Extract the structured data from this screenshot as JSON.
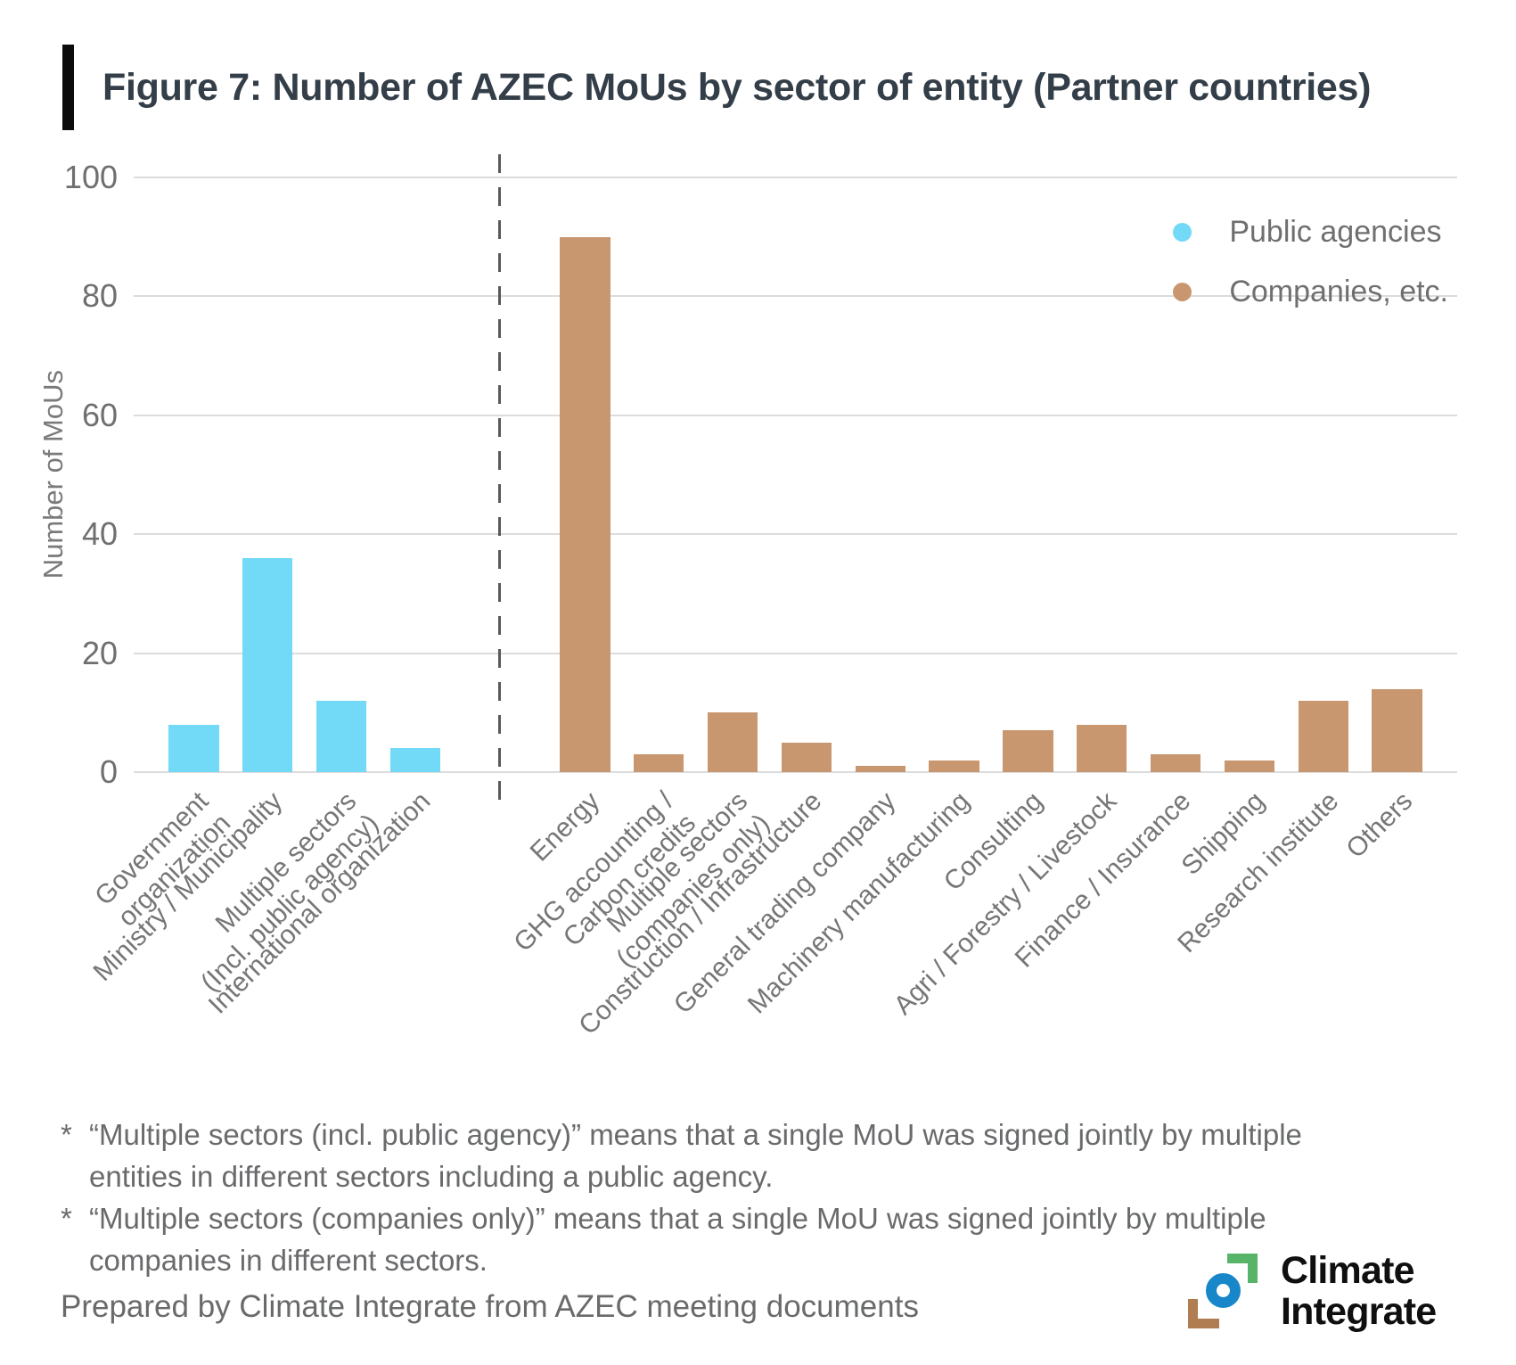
{
  "header": {
    "title": "Figure 7: Number of AZEC MoUs by sector of entity (Partner countries)"
  },
  "chart_data": {
    "type": "bar",
    "title": "Figure 7: Number of AZEC MoUs by sector of entity (Partner countries)",
    "xlabel": "",
    "ylabel": "Number of MoUs",
    "ylim": [
      0,
      100
    ],
    "yticks": [
      0,
      20,
      40,
      60,
      80,
      100
    ],
    "grid": true,
    "legend_position": "top-right",
    "separator": {
      "style": "dashed-vertical-line",
      "color": "#58595b",
      "position": "between-groups"
    },
    "groups": [
      {
        "name": "Public agencies",
        "color": "#72d9f6",
        "categories": [
          "Government\norganization",
          "Ministry / Municipality",
          "Multiple sectors\n(Incl. public agency)",
          "International organization"
        ],
        "values": [
          8,
          36,
          12,
          4
        ]
      },
      {
        "name": "Companies, etc.",
        "color": "#c9976f",
        "categories": [
          "Energy",
          "GHG accounting /\nCarbon credits",
          "Multiple sectors\n(companies only)",
          "Construction / Infrastructure",
          "General trading company",
          "Machinery manufacturing",
          "Consulting",
          "Agri / Forestry / Livestock",
          "Finance / Insurance",
          "Shipping",
          "Research institute",
          "Others"
        ],
        "values": [
          90,
          3,
          10,
          5,
          1,
          2,
          7,
          8,
          3,
          2,
          12,
          14
        ]
      }
    ]
  },
  "footnotes": [
    {
      "marker": "*",
      "lines": [
        "“Multiple sectors (incl. public agency)” means that a single MoU was signed jointly by multiple",
        "entities in different sectors including a public agency."
      ]
    },
    {
      "marker": "*",
      "lines": [
        "“Multiple sectors (companies only)” means that a single MoU was signed jointly by multiple",
        "companies in different sectors."
      ]
    }
  ],
  "source_note": "Prepared by Climate Integrate from AZEC meeting documents",
  "logo": {
    "line1": "Climate",
    "line2": "Integrate",
    "colors": {
      "green": "#57b469",
      "blue": "#1787c9",
      "brown": "#b07c52"
    }
  },
  "style_colors": {
    "gridline": "#dcdcdc",
    "axis_text": "#6f6f6f",
    "title_text": "#333e48"
  }
}
